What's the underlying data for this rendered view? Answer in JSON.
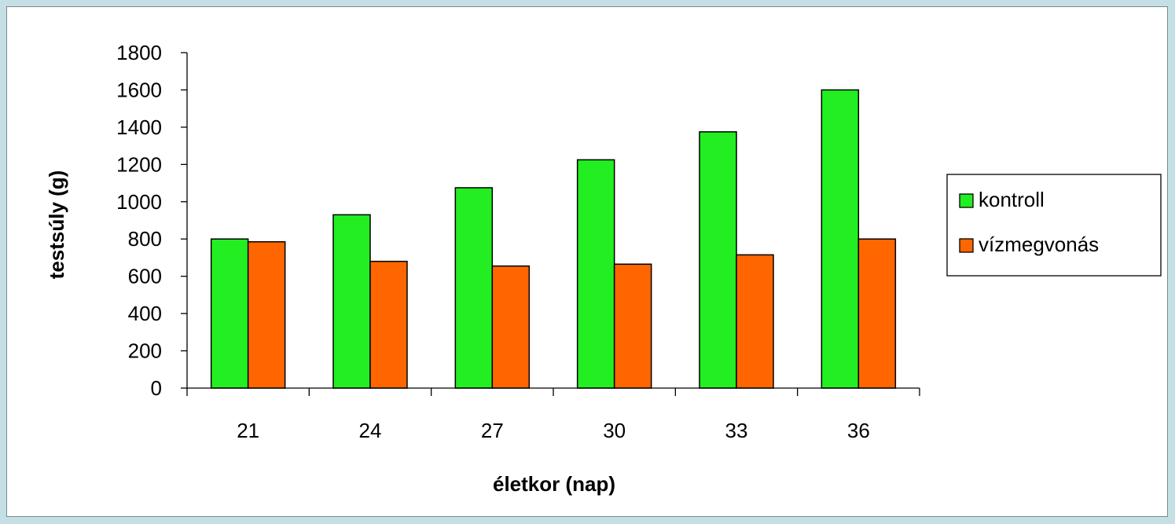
{
  "chart_data": {
    "type": "bar",
    "title": "",
    "xlabel": "életkor (nap)",
    "ylabel": "testsúly (g)",
    "categories": [
      "21",
      "24",
      "27",
      "30",
      "33",
      "36"
    ],
    "ylim": [
      0,
      1800
    ],
    "yticks": [
      "0",
      "200",
      "400",
      "600",
      "800",
      "1000",
      "1200",
      "1400",
      "1600",
      "1800"
    ],
    "grid": false,
    "legend_position": "right",
    "series": [
      {
        "name": "kontroll",
        "color": "#22ee22",
        "values": [
          800,
          930,
          1075,
          1225,
          1375,
          1600
        ]
      },
      {
        "name": "vízmegvonás",
        "color": "#ff6600",
        "values": [
          785,
          680,
          655,
          665,
          715,
          800
        ]
      }
    ]
  }
}
